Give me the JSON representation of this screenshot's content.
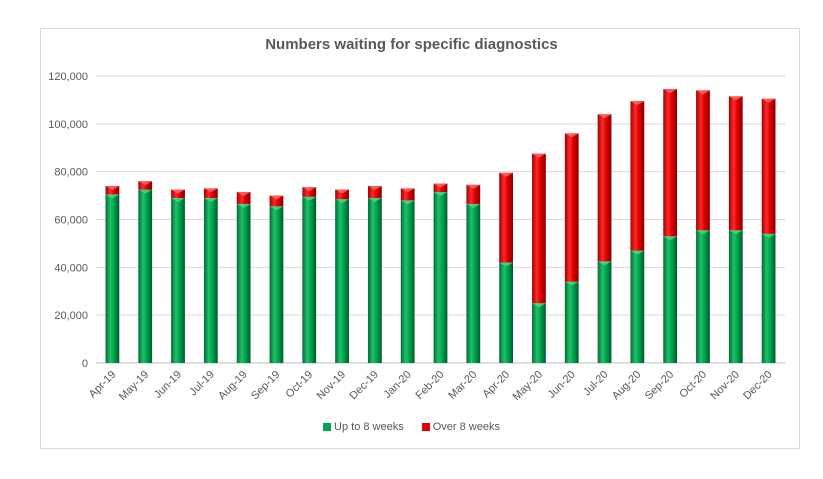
{
  "chart_data": {
    "type": "bar",
    "stacked": true,
    "title": "Numbers waiting for specific diagnostics",
    "xlabel": "",
    "ylabel": "",
    "ylim": [
      0,
      120000
    ],
    "yticks": [
      0,
      20000,
      40000,
      60000,
      80000,
      100000,
      120000
    ],
    "ytick_labels": [
      "0",
      "20,000",
      "40,000",
      "60,000",
      "80,000",
      "100,000",
      "120,000"
    ],
    "grid": true,
    "legend_position": "bottom",
    "categories": [
      "Apr-19",
      "May-19",
      "Jun-19",
      "Jul-19",
      "Aug-19",
      "Sep-19",
      "Oct-19",
      "Nov-19",
      "Dec-19",
      "Jan-20",
      "Feb-20",
      "Mar-20",
      "Apr-20",
      "May-20",
      "Jun-20",
      "Jul-20",
      "Aug-20",
      "Sep-20",
      "Oct-20",
      "Nov-20",
      "Dec-20"
    ],
    "series": [
      {
        "name": "Up to 8 weeks",
        "color": "#00a650",
        "values": [
          70500,
          72500,
          69000,
          69000,
          66500,
          65500,
          69500,
          68500,
          69000,
          68000,
          71500,
          66500,
          42000,
          25000,
          34000,
          42500,
          47000,
          53000,
          55500,
          55500,
          54000
        ]
      },
      {
        "name": "Over 8 weeks",
        "color": "#e00000",
        "values": [
          3500,
          3500,
          3500,
          4000,
          5000,
          4500,
          4000,
          4000,
          5000,
          5000,
          3500,
          8000,
          37500,
          62500,
          62000,
          61500,
          62500,
          61500,
          58500,
          56000,
          56500
        ]
      }
    ]
  }
}
